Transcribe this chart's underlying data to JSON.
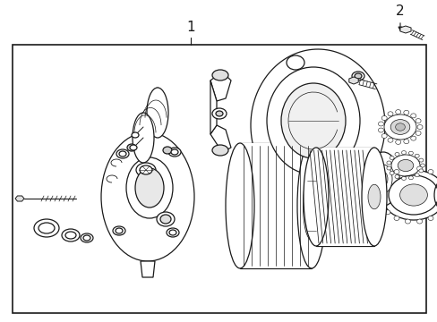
{
  "background_color": "#ffffff",
  "line_color": "#1a1a1a",
  "label_1": "1",
  "label_2": "2",
  "fig_width": 4.89,
  "fig_height": 3.6,
  "dpi": 100
}
